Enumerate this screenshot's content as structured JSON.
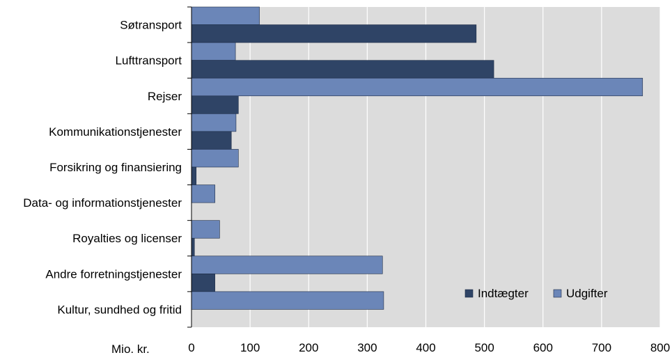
{
  "chart_data": {
    "type": "bar",
    "orientation": "horizontal",
    "title": "",
    "xlabel": "Mio. kr.",
    "ylabel": "",
    "xlim": [
      0,
      800
    ],
    "xticks": [
      "0",
      "100",
      "200",
      "300",
      "400",
      "500",
      "600",
      "700",
      "800"
    ],
    "grid": true,
    "legend_position": "bottom-right",
    "categories": [
      "Søtransport",
      "Lufttransport",
      "Rejser",
      "Kommunikationstjenester",
      "Forsikring og finansiering",
      "Data- og informationstjenester",
      "Royalties og licenser",
      "Andre forretningstjenester",
      "Kultur, sundhed og fritid"
    ],
    "series": [
      {
        "name": "Indtægter",
        "color": "#2f4466",
        "values": [
          486,
          516,
          80,
          68,
          8,
          0,
          5,
          40,
          0
        ]
      },
      {
        "name": "Udgifter",
        "color": "#6b86b8",
        "values": [
          116,
          75,
          770,
          76,
          80,
          40,
          48,
          326,
          328
        ]
      }
    ],
    "colors": {
      "plot_background": "#dcdcdc",
      "background": "#ffffff",
      "grid": "#ffffff"
    }
  }
}
